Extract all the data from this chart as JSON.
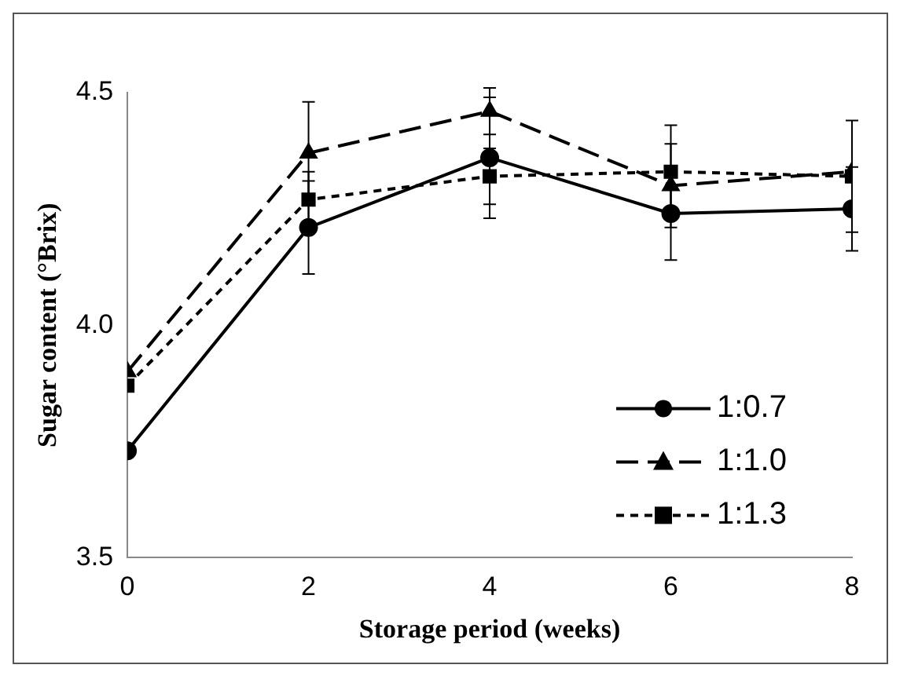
{
  "chart_data": {
    "type": "line",
    "xlabel": "Storage period (weeks)",
    "ylabel": "Sugar content (°Brix)",
    "x": [
      0,
      2,
      4,
      6,
      8
    ],
    "xlim": [
      0,
      8
    ],
    "xticks": [
      0,
      2,
      4,
      6,
      8
    ],
    "ylim": [
      3.5,
      4.5
    ],
    "yticks": [
      3.5,
      {
        "value": 4,
        "label": "4.0"
      },
      4.5
    ],
    "grid": false,
    "legend": "bottom right",
    "series": [
      {
        "name": "1:0.7",
        "color": "#000000",
        "marker": "circle",
        "line_style": "solid",
        "values": [
          3.73,
          4.21,
          4.36,
          4.24,
          4.25
        ],
        "errors": [
          null,
          0.1,
          0.13,
          0.1,
          0.09
        ]
      },
      {
        "name": "1:1.0",
        "color": "#000000",
        "marker": "triangle",
        "line_style": "dashed",
        "values": [
          3.9,
          4.37,
          4.46,
          4.3,
          4.33
        ],
        "errors": [
          null,
          0.11,
          0.05,
          0.09,
          null
        ]
      },
      {
        "name": "1:1.3",
        "color": "#000000",
        "marker": "square",
        "line_style": "dotted",
        "values": [
          3.87,
          4.27,
          4.32,
          4.33,
          4.32
        ],
        "errors": [
          null,
          0.06,
          0.06,
          0.1,
          0.12
        ]
      }
    ]
  }
}
